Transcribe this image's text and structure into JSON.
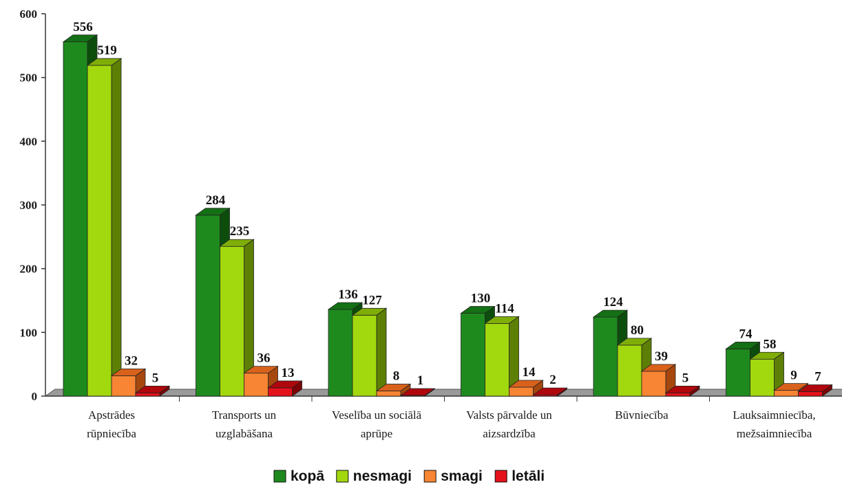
{
  "chart_data": {
    "type": "bar",
    "categories": [
      [
        "Apstrādes",
        "rūpniecība"
      ],
      [
        "Transports un",
        "uzglabāšana"
      ],
      [
        "Veselība un sociālā",
        "aprūpe"
      ],
      [
        "Valsts pārvalde un",
        "aizsardzība"
      ],
      [
        "Būvniecība"
      ],
      [
        "Lauksaimniecība,",
        "mežsaimniecība"
      ]
    ],
    "series": [
      {
        "name": "kopā",
        "values": [
          556,
          284,
          136,
          130,
          124,
          74
        ],
        "color": "#1e8a1e",
        "side": "#0c4d0c",
        "top": "#147014"
      },
      {
        "name": "nesmagi",
        "values": [
          519,
          235,
          127,
          114,
          80,
          58
        ],
        "color": "#a2d80e",
        "side": "#5d7f05",
        "top": "#7fae08"
      },
      {
        "name": "smagi",
        "values": [
          32,
          36,
          8,
          14,
          39,
          9
        ],
        "color": "#f78533",
        "side": "#a6470e",
        "top": "#d8611c"
      },
      {
        "name": "letāli",
        "values": [
          5,
          13,
          1,
          2,
          5,
          7
        ],
        "color": "#e4121a",
        "side": "#7d0206",
        "top": "#b0070d"
      }
    ],
    "yticks": [
      0,
      100,
      200,
      300,
      400,
      500,
      600
    ],
    "ylim": [
      0,
      600
    ],
    "grid": false,
    "legend_position": "bottom"
  }
}
